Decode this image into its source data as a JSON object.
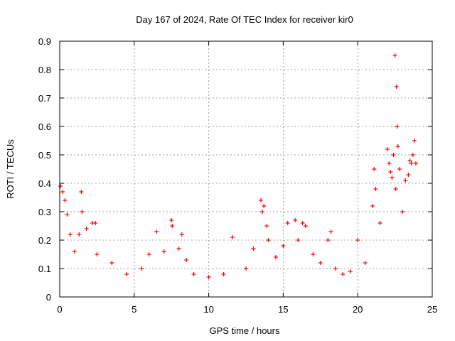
{
  "chart_data": {
    "type": "scatter",
    "title": "Day 167 of 2024, Rate Of TEC Index for receiver kir0",
    "xlabel": "GPS time / hours",
    "ylabel": "ROTI / TECUs",
    "xlim": [
      0,
      25
    ],
    "ylim": [
      0,
      0.9
    ],
    "xticks": [
      "0",
      "5",
      "10",
      "15",
      "20",
      "25"
    ],
    "yticks": [
      "0",
      "0.1",
      "0.2",
      "0.3",
      "0.4",
      "0.5",
      "0.6",
      "0.7",
      "0.8",
      "0.9"
    ],
    "grid": true,
    "marker": "plus",
    "color": "#ff0000",
    "series": [
      {
        "x": [
          0.05,
          0.2,
          0.35,
          0.5,
          0.7,
          1.0,
          1.3,
          1.45,
          1.5,
          1.8,
          2.2,
          2.4,
          2.5,
          3.5,
          4.5,
          5.5,
          6.0,
          6.5,
          7.0,
          7.5,
          7.55,
          8.0,
          8.2,
          8.5,
          9.0,
          10.0,
          11.0,
          11.6,
          12.5,
          13.0,
          13.5,
          13.6,
          13.7,
          13.9,
          14.0,
          14.5,
          15.0,
          15.3,
          15.8,
          16.0,
          16.3,
          16.5,
          17.0,
          17.5,
          18.0,
          18.2,
          18.5,
          19.0,
          19.5,
          20.0,
          20.5,
          21.0,
          21.1,
          21.2,
          21.5,
          22.0,
          22.1,
          22.2,
          22.3,
          22.4,
          22.5,
          22.55,
          22.6,
          22.65,
          22.7,
          22.8,
          23.0,
          23.2,
          23.4,
          23.5,
          23.6,
          23.7,
          23.8,
          23.9
        ],
        "y": [
          0.39,
          0.37,
          0.34,
          0.29,
          0.22,
          0.16,
          0.22,
          0.37,
          0.3,
          0.24,
          0.26,
          0.26,
          0.15,
          0.12,
          0.08,
          0.1,
          0.15,
          0.23,
          0.16,
          0.27,
          0.25,
          0.17,
          0.22,
          0.13,
          0.08,
          0.07,
          0.08,
          0.21,
          0.1,
          0.17,
          0.34,
          0.3,
          0.32,
          0.25,
          0.2,
          0.14,
          0.18,
          0.26,
          0.27,
          0.2,
          0.26,
          0.25,
          0.15,
          0.12,
          0.2,
          0.23,
          0.1,
          0.08,
          0.09,
          0.2,
          0.12,
          0.32,
          0.45,
          0.38,
          0.26,
          0.52,
          0.47,
          0.44,
          0.42,
          0.5,
          0.85,
          0.38,
          0.74,
          0.6,
          0.53,
          0.45,
          0.3,
          0.41,
          0.43,
          0.48,
          0.47,
          0.5,
          0.55,
          0.47
        ]
      }
    ]
  }
}
